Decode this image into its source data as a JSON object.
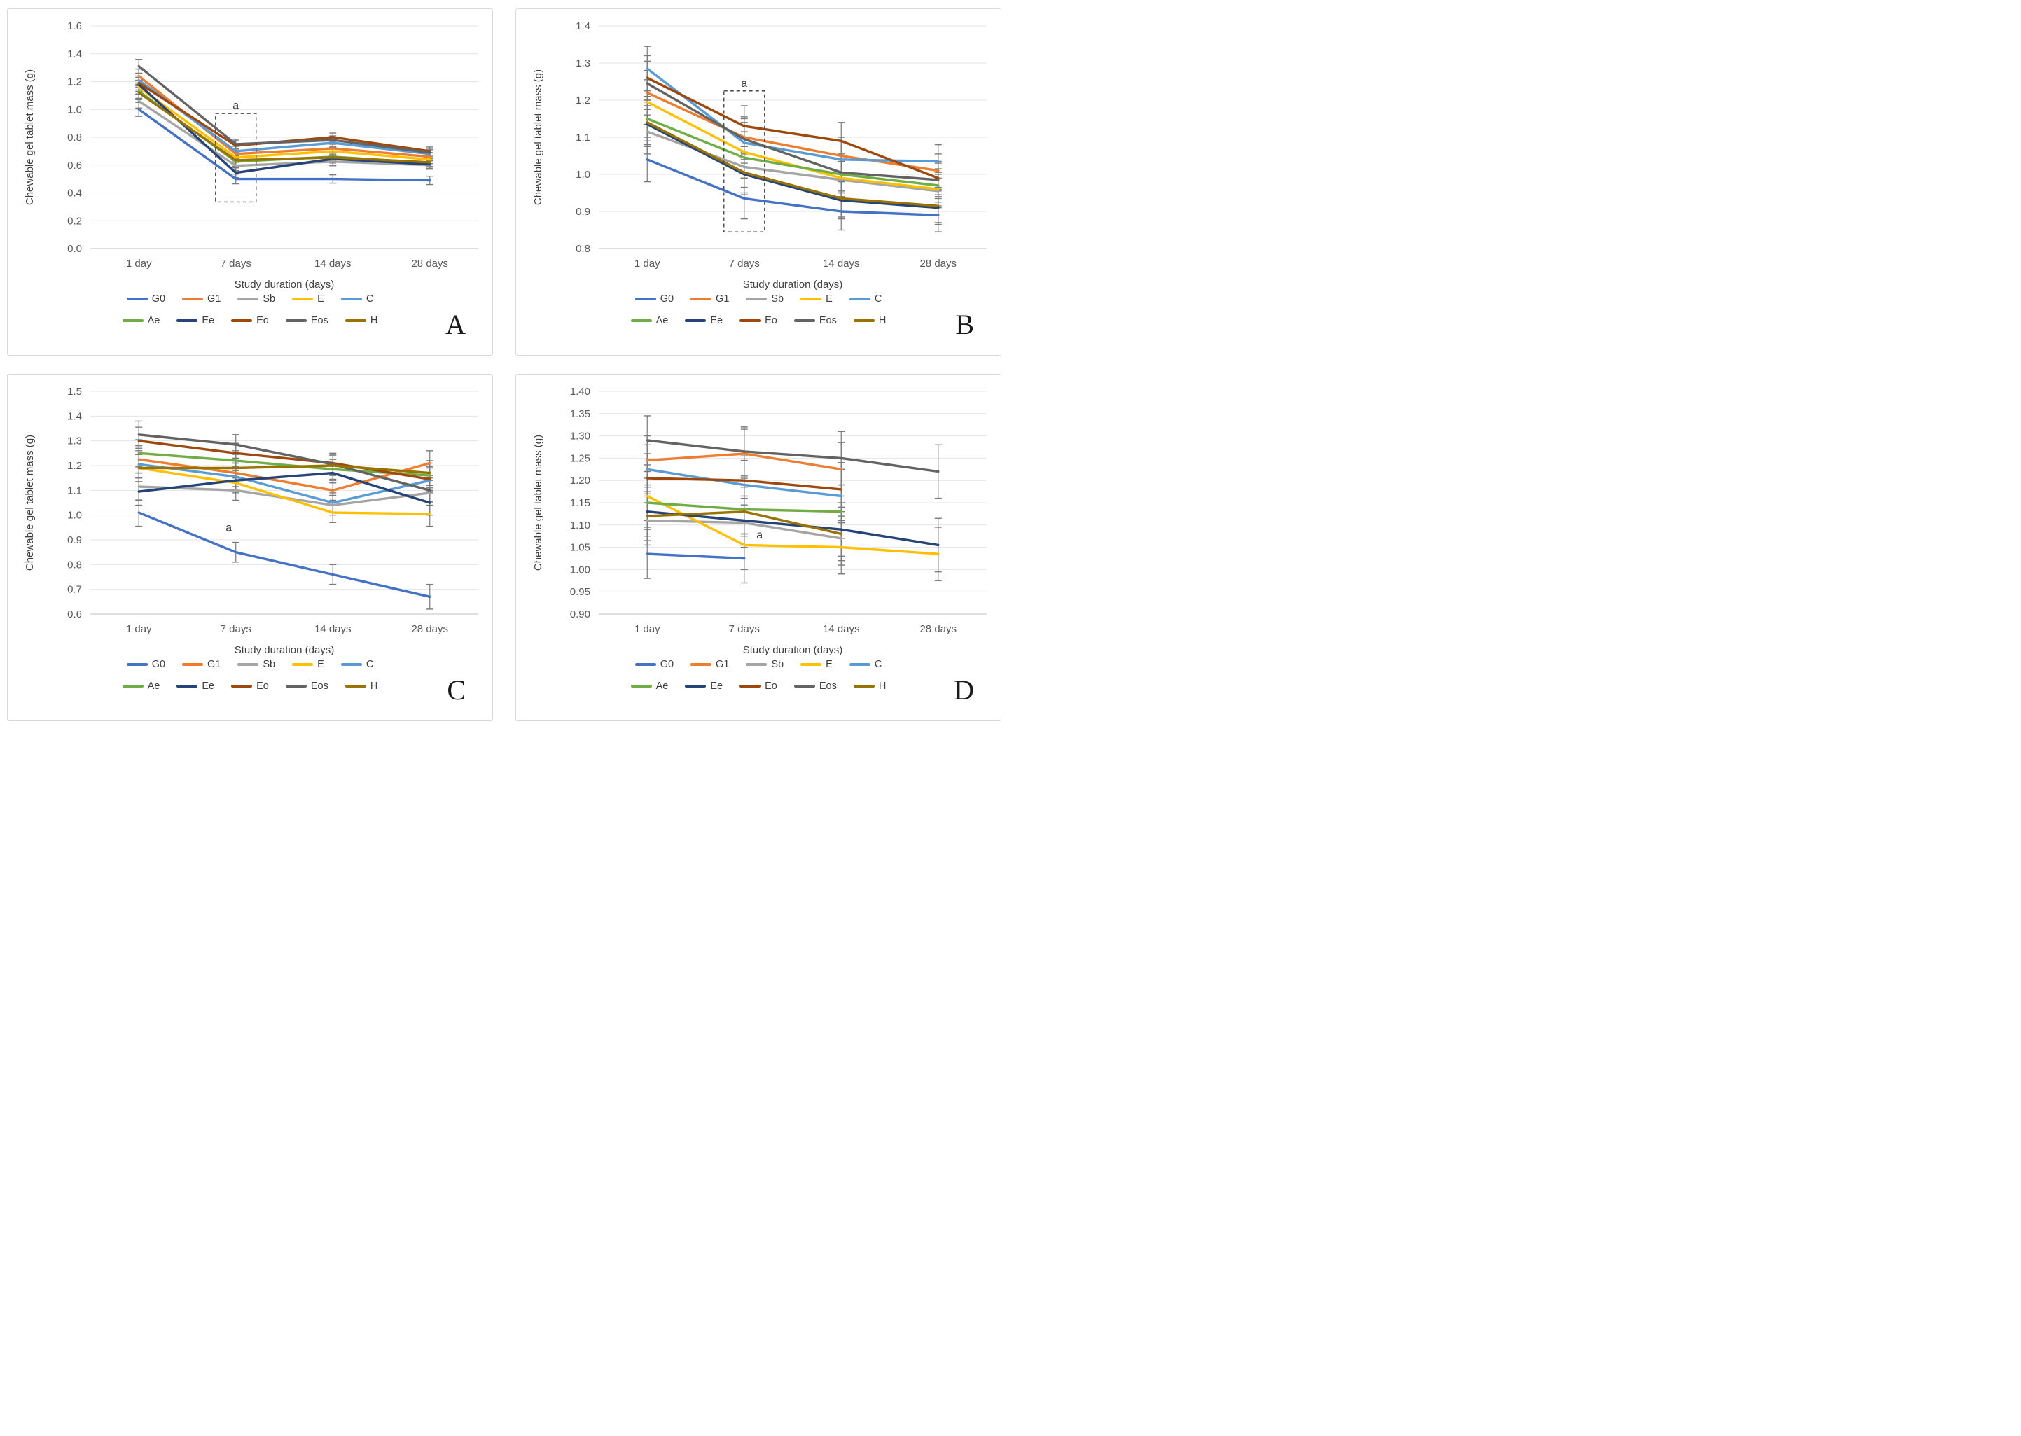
{
  "page": {
    "background": "#ffffff",
    "panel_border": "#d9d9d9"
  },
  "styles": {
    "grid_color": "#e4e4e4",
    "axis_line_color": "#bfbfbf",
    "errorbar_color": "#7a7a7a",
    "tick_text_color": "#595959",
    "axis_title_color": "#404040",
    "annotation_color": "#3f3f3f",
    "annotation_box_color": "#4a4a4a"
  },
  "chart_data": [
    {
      "type": "line",
      "letter": "A",
      "xlabel": "Study duration (days)",
      "ylabel": "Chewable gel tablet mass (g)",
      "categories": [
        "1 day",
        "7 days",
        "14 days",
        "28 days"
      ],
      "ylim": [
        0.0,
        1.6
      ],
      "ystep": 0.2,
      "ydecimals": 1,
      "grid": true,
      "legend_position": "bottom",
      "error_bars": [
        0.05,
        0.035,
        0.03,
        0.03
      ],
      "annotation": {
        "label": "a",
        "x_index": 1,
        "label_y": 1.03,
        "label_dx": 0,
        "box": [
          0.335,
          0.97
        ]
      },
      "series": [
        {
          "name": "G0",
          "color": "#4472C4",
          "values": [
            1.0,
            0.5,
            0.5,
            0.49
          ]
        },
        {
          "name": "G1",
          "color": "#ED7D31",
          "values": [
            1.24,
            0.68,
            0.72,
            0.66
          ]
        },
        {
          "name": "Sb",
          "color": "#A5A5A5",
          "values": [
            1.06,
            0.595,
            0.625,
            0.6
          ]
        },
        {
          "name": "E",
          "color": "#FFC000",
          "values": [
            1.16,
            0.655,
            0.7,
            0.64
          ]
        },
        {
          "name": "C",
          "color": "#5B9BD5",
          "values": [
            1.21,
            0.7,
            0.76,
            0.68
          ]
        },
        {
          "name": "Ae",
          "color": "#70AD47",
          "values": [
            1.13,
            0.625,
            0.66,
            0.615
          ]
        },
        {
          "name": "Ee",
          "color": "#264478",
          "values": [
            1.18,
            0.545,
            0.645,
            0.605
          ]
        },
        {
          "name": "Eo",
          "color": "#9E480E",
          "values": [
            1.19,
            0.74,
            0.8,
            0.7
          ]
        },
        {
          "name": "Eos",
          "color": "#636363",
          "values": [
            1.31,
            0.75,
            0.78,
            0.69
          ]
        },
        {
          "name": "H",
          "color": "#997300",
          "values": [
            1.12,
            0.635,
            0.655,
            0.62
          ]
        }
      ]
    },
    {
      "type": "line",
      "letter": "B",
      "xlabel": "Study duration (days)",
      "ylabel": "Chewable gel tablet mass (g)",
      "categories": [
        "1 day",
        "7 days",
        "14 days",
        "28 days"
      ],
      "ylim": [
        0.8,
        1.4
      ],
      "ystep": 0.1,
      "ydecimals": 1,
      "grid": true,
      "legend_position": "bottom",
      "error_bars": [
        0.06,
        0.055,
        0.05,
        0.045
      ],
      "annotation": {
        "label": "a",
        "x_index": 1,
        "label_y": 1.245,
        "label_dx": 0,
        "box": [
          0.845,
          1.225
        ]
      },
      "series": [
        {
          "name": "G0",
          "color": "#4472C4",
          "values": [
            1.04,
            0.935,
            0.9,
            0.89
          ]
        },
        {
          "name": "G1",
          "color": "#ED7D31",
          "values": [
            1.22,
            1.1,
            1.05,
            1.01
          ]
        },
        {
          "name": "Sb",
          "color": "#A5A5A5",
          "values": [
            1.115,
            1.02,
            0.985,
            0.955
          ]
        },
        {
          "name": "E",
          "color": "#FFC000",
          "values": [
            1.195,
            1.06,
            0.99,
            0.96
          ]
        },
        {
          "name": "C",
          "color": "#5B9BD5",
          "values": [
            1.285,
            1.085,
            1.04,
            1.035
          ]
        },
        {
          "name": "Ae",
          "color": "#70AD47",
          "values": [
            1.15,
            1.045,
            1.0,
            0.97
          ]
        },
        {
          "name": "Ee",
          "color": "#264478",
          "values": [
            1.135,
            1.0,
            0.93,
            0.91
          ]
        },
        {
          "name": "Eo",
          "color": "#9E480E",
          "values": [
            1.26,
            1.13,
            1.09,
            0.99
          ]
        },
        {
          "name": "Eos",
          "color": "#636363",
          "values": [
            1.245,
            1.095,
            1.005,
            0.985
          ]
        },
        {
          "name": "H",
          "color": "#997300",
          "values": [
            1.14,
            1.005,
            0.935,
            0.915
          ]
        }
      ]
    },
    {
      "type": "line",
      "letter": "C",
      "xlabel": "Study duration (days)",
      "ylabel": "Chewable gel tablet mass (g)",
      "categories": [
        "1 day",
        "7 days",
        "14 days",
        "28 days"
      ],
      "ylim": [
        0.6,
        1.5
      ],
      "ystep": 0.1,
      "ydecimals": 1,
      "grid": true,
      "legend_position": "bottom",
      "error_bars": [
        0.055,
        0.04,
        0.04,
        0.05
      ],
      "annotation": {
        "label": "a",
        "x_index": 1,
        "label_y": 0.95,
        "label_dx": -10,
        "box": null
      },
      "series": [
        {
          "name": "G0",
          "color": "#4472C4",
          "values": [
            1.01,
            0.85,
            0.76,
            0.67
          ]
        },
        {
          "name": "G1",
          "color": "#ED7D31",
          "values": [
            1.225,
            1.17,
            1.1,
            1.21
          ]
        },
        {
          "name": "Sb",
          "color": "#A5A5A5",
          "values": [
            1.115,
            1.1,
            1.04,
            1.09
          ]
        },
        {
          "name": "E",
          "color": "#FFC000",
          "values": [
            1.19,
            1.13,
            1.01,
            1.005
          ]
        },
        {
          "name": "C",
          "color": "#5B9BD5",
          "values": [
            1.205,
            1.155,
            1.05,
            1.14
          ]
        },
        {
          "name": "Ae",
          "color": "#70AD47",
          "values": [
            1.25,
            1.22,
            1.185,
            1.16
          ]
        },
        {
          "name": "Ee",
          "color": "#264478",
          "values": [
            1.095,
            1.14,
            1.17,
            1.05
          ]
        },
        {
          "name": "Eo",
          "color": "#9E480E",
          "values": [
            1.3,
            1.25,
            1.21,
            1.145
          ]
        },
        {
          "name": "Eos",
          "color": "#636363",
          "values": [
            1.325,
            1.285,
            1.205,
            1.1
          ]
        },
        {
          "name": "H",
          "color": "#997300",
          "values": [
            1.19,
            1.19,
            1.2,
            1.17
          ]
        }
      ]
    },
    {
      "type": "line",
      "letter": "D",
      "xlabel": "Study duration (days)",
      "ylabel": "Chewable gel tablet mass (g)",
      "categories": [
        "1 day",
        "7 days",
        "14 days",
        "28 days"
      ],
      "ylim": [
        0.9,
        1.4
      ],
      "ystep": 0.05,
      "ydecimals": 2,
      "grid": true,
      "legend_position": "bottom",
      "error_bars": [
        0.055,
        0.055,
        0.06,
        0.06
      ],
      "annotation": {
        "label": "a",
        "x_index": 1,
        "label_y": 1.078,
        "label_dx": 22,
        "box": null
      },
      "series": [
        {
          "name": "G0",
          "color": "#4472C4",
          "values": [
            1.035,
            1.025,
            null,
            null
          ]
        },
        {
          "name": "G1",
          "color": "#ED7D31",
          "values": [
            1.245,
            1.26,
            1.225,
            null
          ]
        },
        {
          "name": "Sb",
          "color": "#A5A5A5",
          "values": [
            1.11,
            1.105,
            1.07,
            null
          ]
        },
        {
          "name": "E",
          "color": "#FFC000",
          "values": [
            1.165,
            1.055,
            1.05,
            1.035
          ]
        },
        {
          "name": "C",
          "color": "#5B9BD5",
          "values": [
            1.225,
            1.19,
            1.165,
            null
          ]
        },
        {
          "name": "Ae",
          "color": "#70AD47",
          "values": [
            1.15,
            1.135,
            1.13,
            null
          ]
        },
        {
          "name": "Ee",
          "color": "#264478",
          "values": [
            1.13,
            1.11,
            1.09,
            1.055
          ]
        },
        {
          "name": "Eo",
          "color": "#9E480E",
          "values": [
            1.205,
            1.2,
            1.18,
            null
          ]
        },
        {
          "name": "Eos",
          "color": "#636363",
          "values": [
            1.29,
            1.265,
            1.25,
            1.22
          ]
        },
        {
          "name": "H",
          "color": "#997300",
          "values": [
            1.12,
            1.13,
            1.08,
            null
          ]
        }
      ]
    }
  ]
}
